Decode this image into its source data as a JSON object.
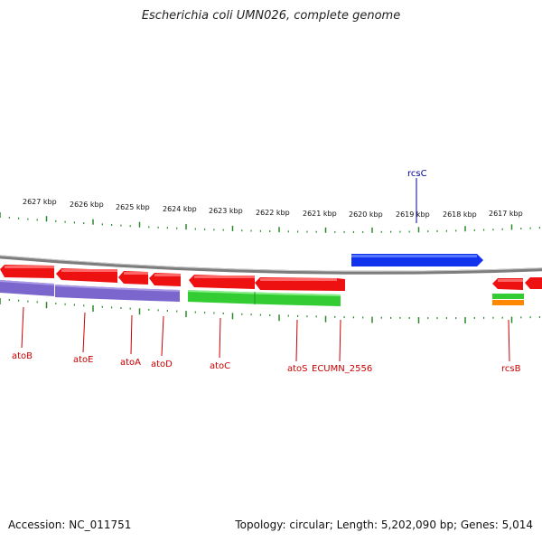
{
  "title": "Escherichia coli UMN026, complete genome",
  "footer": {
    "accession": "Accession: NC_011751",
    "summary": "Topology: circular; Length: 5,202,090 bp; Genes: 5,014"
  },
  "colors": {
    "red_gene": "#ee1111",
    "blue_gene": "#1133ee",
    "purple_feature": "#7a66cc",
    "green_feature": "#33cc33",
    "orange_feature": "#ff8800",
    "backbone": "#888888",
    "tick": "#2a8a2a",
    "label_red": "#cc0000",
    "label_blue": "#000099"
  },
  "kbp_labels": [
    "2627 kbp",
    "2626 kbp",
    "2625 kbp",
    "2624 kbp",
    "2623 kbp",
    "2622 kbp",
    "2621 kbp",
    "2620 kbp",
    "2619 kbp",
    "2618 kbp",
    "2617 kbp"
  ],
  "gene_labels": [
    {
      "text": "atoB",
      "color": "red"
    },
    {
      "text": "atoE",
      "color": "red"
    },
    {
      "text": "atoA",
      "color": "red"
    },
    {
      "text": "atoD",
      "color": "red"
    },
    {
      "text": "atoC",
      "color": "red"
    },
    {
      "text": "atoS",
      "color": "red"
    },
    {
      "text": "ECUMN_2556",
      "color": "red"
    },
    {
      "text": "rcsB",
      "color": "red"
    },
    {
      "text": "rcsC",
      "color": "blue"
    }
  ]
}
